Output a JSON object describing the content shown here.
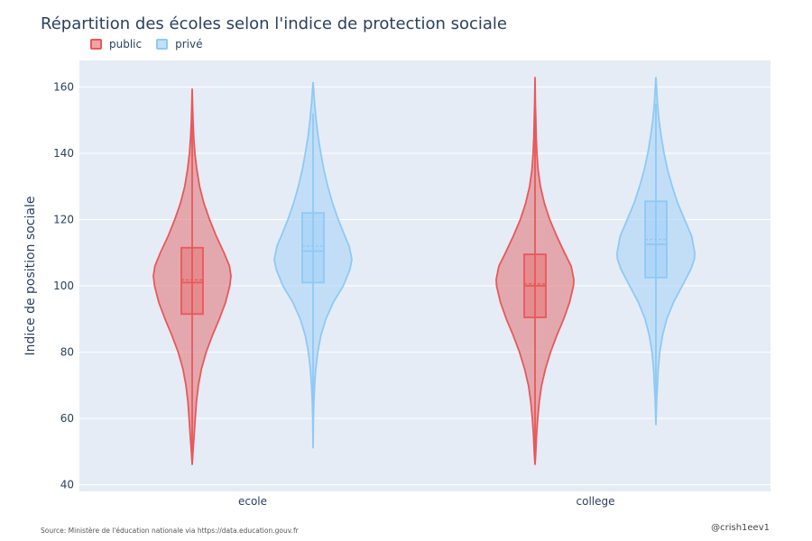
{
  "chart_data": {
    "type": "violin",
    "title": "Répartition des écoles selon l'indice de protection sociale",
    "ylabel": "Indice de position sociale",
    "xlabel": "",
    "categories": [
      "ecole",
      "college"
    ],
    "ylim": [
      38,
      168
    ],
    "yticks": [
      40,
      60,
      80,
      100,
      120,
      140,
      160
    ],
    "grid": true,
    "legend_position": "top-left",
    "series": [
      {
        "name": "public",
        "color": "#e8585a",
        "fill": "#e38c8f",
        "groups": [
          {
            "category": "ecole",
            "min": 46,
            "max": 159.5,
            "q1": 91.5,
            "median": 101,
            "mean": 101.8,
            "q3": 111.5,
            "lower_fence": 48,
            "upper_fence": 151,
            "profile": [
              [
                46,
                0
              ],
              [
                50,
                0.02
              ],
              [
                55,
                0.05
              ],
              [
                60,
                0.08
              ],
              [
                65,
                0.11
              ],
              [
                70,
                0.16
              ],
              [
                75,
                0.24
              ],
              [
                80,
                0.36
              ],
              [
                85,
                0.52
              ],
              [
                90,
                0.7
              ],
              [
                95,
                0.86
              ],
              [
                100,
                0.97
              ],
              [
                103,
                1.0
              ],
              [
                106,
                0.96
              ],
              [
                110,
                0.82
              ],
              [
                115,
                0.62
              ],
              [
                120,
                0.45
              ],
              [
                125,
                0.3
              ],
              [
                130,
                0.19
              ],
              [
                135,
                0.12
              ],
              [
                140,
                0.07
              ],
              [
                145,
                0.04
              ],
              [
                150,
                0.02
              ],
              [
                155,
                0.01
              ],
              [
                159.5,
                0
              ]
            ]
          },
          {
            "category": "college",
            "min": 46,
            "max": 163,
            "q1": 90.5,
            "median": 100,
            "mean": 100.6,
            "q3": 109.5,
            "lower_fence": 48,
            "upper_fence": 153,
            "profile": [
              [
                46,
                0
              ],
              [
                50,
                0.02
              ],
              [
                55,
                0.04
              ],
              [
                60,
                0.07
              ],
              [
                65,
                0.11
              ],
              [
                70,
                0.17
              ],
              [
                75,
                0.27
              ],
              [
                80,
                0.4
              ],
              [
                85,
                0.56
              ],
              [
                90,
                0.74
              ],
              [
                95,
                0.89
              ],
              [
                100,
                0.99
              ],
              [
                102,
                1.0
              ],
              [
                106,
                0.93
              ],
              [
                110,
                0.76
              ],
              [
                115,
                0.56
              ],
              [
                120,
                0.38
              ],
              [
                125,
                0.24
              ],
              [
                130,
                0.14
              ],
              [
                135,
                0.08
              ],
              [
                140,
                0.05
              ],
              [
                145,
                0.03
              ],
              [
                150,
                0.02
              ],
              [
                155,
                0.01
              ],
              [
                163,
                0
              ]
            ]
          }
        ]
      },
      {
        "name": "privé",
        "color": "#8ec9f5",
        "fill": "#b3d8f8",
        "groups": [
          {
            "category": "ecole",
            "min": 51,
            "max": 161.5,
            "q1": 101,
            "median": 110.5,
            "mean": 112,
            "q3": 122,
            "lower_fence": 65,
            "upper_fence": 152,
            "profile": [
              [
                51,
                0
              ],
              [
                60,
                0.01
              ],
              [
                65,
                0.02
              ],
              [
                70,
                0.04
              ],
              [
                75,
                0.07
              ],
              [
                80,
                0.12
              ],
              [
                85,
                0.2
              ],
              [
                90,
                0.33
              ],
              [
                95,
                0.52
              ],
              [
                100,
                0.78
              ],
              [
                105,
                0.95
              ],
              [
                108,
                1.0
              ],
              [
                112,
                0.93
              ],
              [
                115,
                0.82
              ],
              [
                120,
                0.65
              ],
              [
                125,
                0.5
              ],
              [
                130,
                0.38
              ],
              [
                135,
                0.28
              ],
              [
                140,
                0.2
              ],
              [
                145,
                0.13
              ],
              [
                150,
                0.08
              ],
              [
                155,
                0.04
              ],
              [
                161.5,
                0
              ]
            ]
          },
          {
            "category": "college",
            "min": 58,
            "max": 163,
            "q1": 102.5,
            "median": 112.5,
            "mean": 114,
            "q3": 125.5,
            "lower_fence": 60,
            "upper_fence": 155,
            "profile": [
              [
                58,
                0
              ],
              [
                62,
                0.01
              ],
              [
                66,
                0.02
              ],
              [
                70,
                0.04
              ],
              [
                75,
                0.06
              ],
              [
                80,
                0.1
              ],
              [
                85,
                0.17
              ],
              [
                90,
                0.28
              ],
              [
                95,
                0.45
              ],
              [
                100,
                0.68
              ],
              [
                105,
                0.9
              ],
              [
                108,
                0.99
              ],
              [
                110,
                1.0
              ],
              [
                115,
                0.92
              ],
              [
                120,
                0.74
              ],
              [
                125,
                0.56
              ],
              [
                130,
                0.42
              ],
              [
                135,
                0.3
              ],
              [
                140,
                0.21
              ],
              [
                145,
                0.14
              ],
              [
                150,
                0.08
              ],
              [
                155,
                0.04
              ],
              [
                163,
                0
              ]
            ]
          }
        ]
      }
    ]
  },
  "footer": {
    "source": "Source: Ministère de l'éducation nationale via https://data.education.gouv.fr",
    "credit": "@crish1eev1"
  }
}
